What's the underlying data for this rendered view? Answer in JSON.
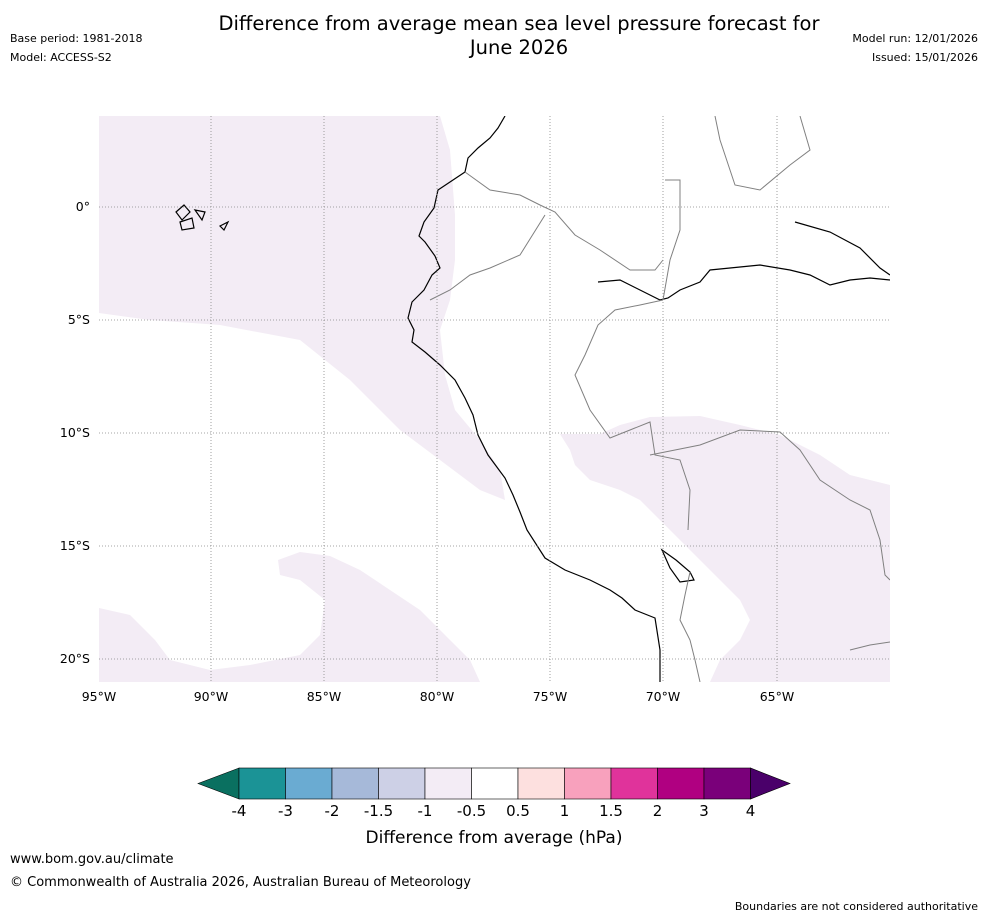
{
  "header": {
    "title_line1": "Difference from average mean sea level pressure forecast for",
    "title_line2": "June 2026",
    "base_period": "Base period: 1981-2018",
    "model": "Model: ACCESS-S2",
    "model_run": "Model run: 12/01/2026",
    "issued": "Issued: 15/01/2026"
  },
  "map": {
    "lat_labels": [
      "0°",
      "5°S",
      "10°S",
      "15°S",
      "20°S"
    ],
    "lon_labels": [
      "95°W",
      "90°W",
      "85°W",
      "80°W",
      "75°W",
      "70°W",
      "65°W"
    ],
    "colors": {
      "land_border": "#000000",
      "country_border": "#808080",
      "shaded_fill": "#f3ecf5",
      "grid": "#888888"
    }
  },
  "colorbar": {
    "title": "Difference from average (hPa)",
    "tick_labels": [
      "-4",
      "-3",
      "-2",
      "-1.5",
      "-1",
      "-0.5",
      "0.5",
      "1",
      "1.5",
      "2",
      "3",
      "4"
    ],
    "colors": [
      "#0a7060",
      "#1b9396",
      "#6aabd2",
      "#a6b9d9",
      "#cdd0e6",
      "#f3ecf5",
      "#ffffff",
      "#fde0df",
      "#f8a1bd",
      "#e0339b",
      "#b00081",
      "#7a007a",
      "#4a006a"
    ]
  },
  "footer": {
    "url": "www.bom.gov.au/climate",
    "copyright": "© Commonwealth of Australia 2026, Australian Bureau of Meteorology",
    "disclaimer": "Boundaries are not considered authoritative"
  }
}
